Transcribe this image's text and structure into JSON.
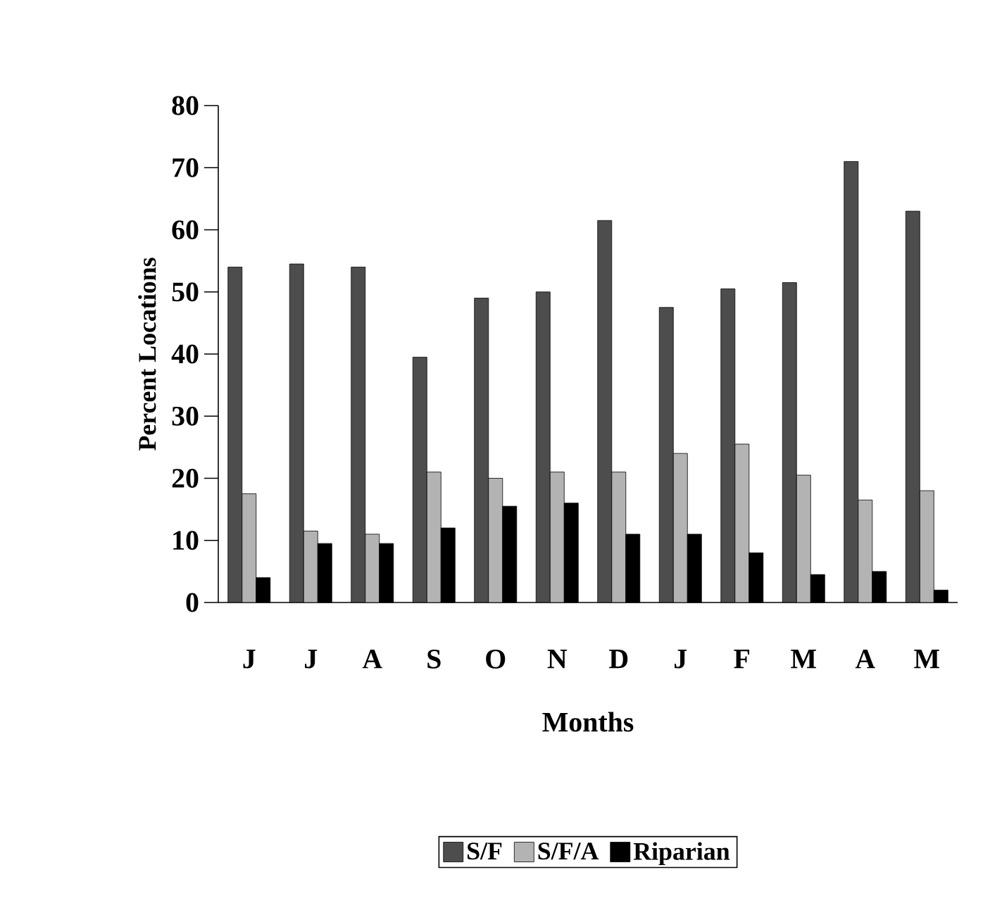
{
  "chart_data": {
    "type": "bar",
    "xlabel": "Months",
    "ylabel": "Percent Locations",
    "categories": [
      "J",
      "J",
      "A",
      "S",
      "O",
      "N",
      "D",
      "J",
      "F",
      "M",
      "A",
      "M"
    ],
    "series": [
      {
        "name": "S/F",
        "color": "#4d4d4d",
        "values": [
          54,
          54.5,
          54,
          39.5,
          49,
          50,
          61.5,
          47.5,
          50.5,
          51.5,
          71,
          63
        ]
      },
      {
        "name": "S/F/A",
        "color": "#b3b3b3",
        "values": [
          17.5,
          11.5,
          11,
          21,
          20,
          21,
          21,
          24,
          25.5,
          20.5,
          16.5,
          18
        ]
      },
      {
        "name": "Riparian",
        "color": "#000000",
        "values": [
          4,
          9.5,
          9.5,
          12,
          15.5,
          16,
          11,
          11,
          8,
          4.5,
          5,
          2
        ]
      }
    ],
    "ylim": [
      0,
      80
    ],
    "yticks": [
      0,
      10,
      20,
      30,
      40,
      50,
      60,
      70,
      80
    ],
    "legend": "bottom"
  }
}
